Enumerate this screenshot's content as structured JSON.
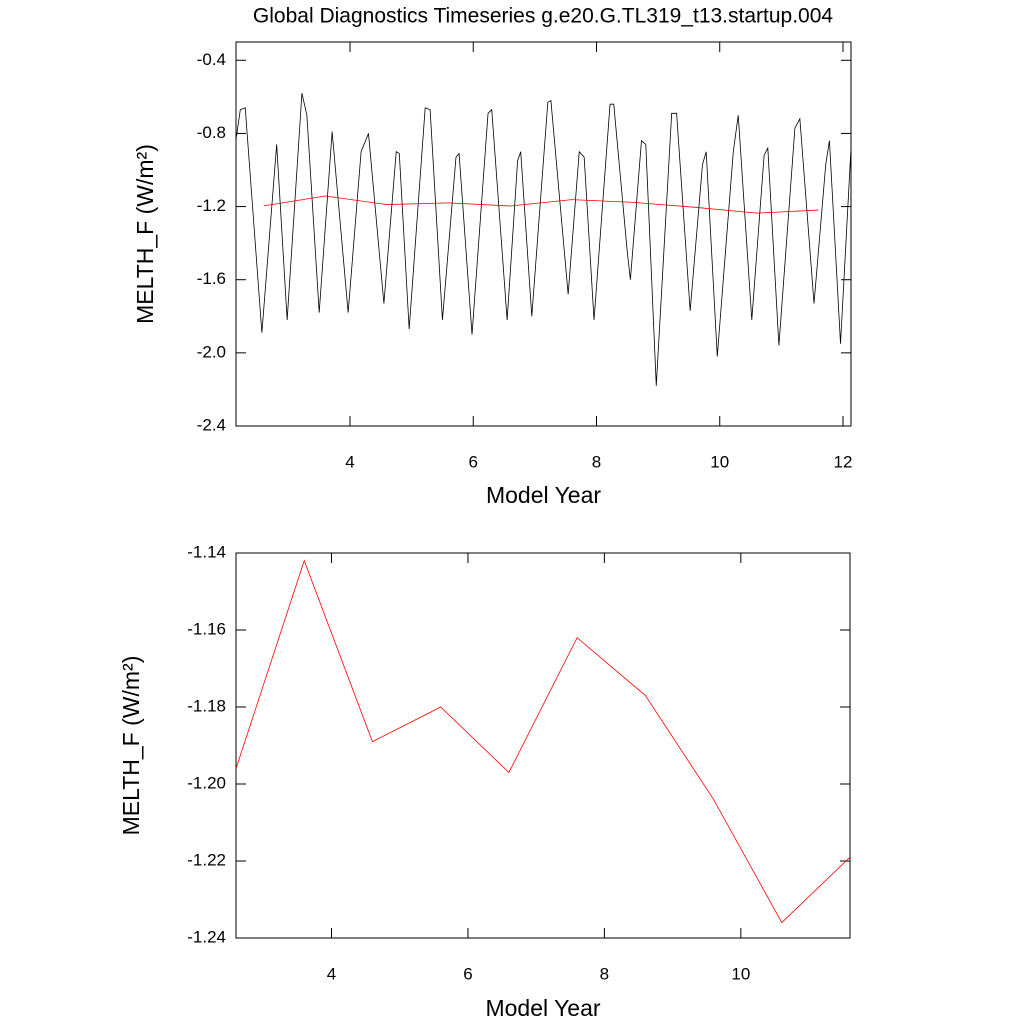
{
  "chart_data": [
    {
      "type": "line",
      "title": "Global Diagnostics Timeseries g.e20.G.TL319_t13.startup.004",
      "x_label": "Model Year",
      "y_label": "MELTH_F (W/m²)",
      "xlim": [
        2.15,
        12.13
      ],
      "xticks": [
        4,
        6,
        8,
        10,
        12
      ],
      "ylim": [
        -2.4,
        -0.3
      ],
      "yticks": [
        -0.4,
        -0.8,
        -1.2,
        -1.6,
        {
          "value": -2,
          "label": "-2.0"
        },
        -2.4
      ],
      "series": [
        {
          "color": "#000000",
          "x": [
            2.13,
            2.22,
            2.3,
            2.57,
            2.81,
            2.98,
            3.22,
            3.3,
            3.5,
            3.71,
            3.97,
            4.18,
            4.3,
            4.55,
            4.75,
            4.8,
            4.96,
            5.22,
            5.3,
            5.5,
            5.72,
            5.77,
            5.98,
            6.24,
            6.3,
            6.55,
            6.72,
            6.77,
            6.95,
            7.21,
            7.26,
            7.54,
            7.72,
            7.8,
            7.96,
            8.22,
            8.28,
            8.5,
            8.55,
            8.73,
            8.8,
            8.97,
            9.22,
            9.3,
            9.52,
            9.72,
            9.78,
            9.96,
            10.22,
            10.3,
            10.52,
            10.72,
            10.78,
            10.96,
            11.22,
            11.3,
            11.53,
            11.72,
            11.78,
            11.96,
            12.13
          ],
          "values": [
            -0.88,
            -0.67,
            -0.66,
            -1.89,
            -0.86,
            -1.82,
            -0.58,
            -0.7,
            -1.78,
            -0.79,
            -1.78,
            -0.9,
            -0.8,
            -1.73,
            -0.9,
            -0.91,
            -1.87,
            -0.66,
            -0.67,
            -1.82,
            -0.93,
            -0.91,
            -1.9,
            -0.69,
            -0.67,
            -1.82,
            -0.95,
            -0.9,
            -1.8,
            -0.63,
            -0.62,
            -1.68,
            -0.9,
            -0.93,
            -1.82,
            -0.64,
            -0.64,
            -1.45,
            -1.6,
            -0.84,
            -0.86,
            -2.18,
            -0.69,
            -0.69,
            -1.77,
            -0.97,
            -0.9,
            -2.02,
            -0.9,
            -0.7,
            -1.82,
            -0.92,
            -0.88,
            -1.96,
            -0.77,
            -0.72,
            -1.73,
            -0.97,
            -0.84,
            -1.95,
            -0.88
          ]
        },
        {
          "color": "#ff0000",
          "x": [
            2.6,
            3.6,
            4.6,
            5.6,
            6.6,
            7.6,
            8.6,
            9.6,
            10.6,
            11.6
          ],
          "values": [
            -1.196,
            -1.142,
            -1.189,
            -1.18,
            -1.197,
            -1.162,
            -1.177,
            -1.204,
            -1.236,
            -1.219
          ]
        }
      ]
    },
    {
      "type": "line",
      "x_label": "Model Year",
      "y_label": "MELTH_F (W/m²)",
      "xlim": [
        2.6,
        11.6
      ],
      "xticks": [
        4,
        6,
        8,
        10
      ],
      "ylim": [
        -1.24,
        -1.14
      ],
      "yticks": [
        -1.14,
        -1.16,
        -1.18,
        {
          "value": -1.2,
          "label": "-1.20"
        },
        -1.22,
        -1.24
      ],
      "color": "#ff0000",
      "x": [
        2.6,
        3.6,
        4.6,
        5.6,
        6.6,
        7.6,
        8.6,
        9.6,
        10.6,
        11.6
      ],
      "values": [
        -1.196,
        -1.142,
        -1.189,
        -1.18,
        -1.197,
        -1.162,
        -1.177,
        -1.204,
        -1.236,
        -1.219
      ]
    }
  ]
}
